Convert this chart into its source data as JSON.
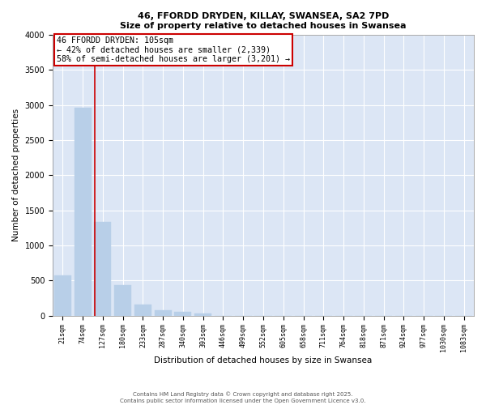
{
  "title_line1": "46, FFORDD DRYDEN, KILLAY, SWANSEA, SA2 7PD",
  "title_line2": "Size of property relative to detached houses in Swansea",
  "xlabel": "Distribution of detached houses by size in Swansea",
  "ylabel": "Number of detached properties",
  "bar_color": "#b8cfe8",
  "bar_edge_color": "#b8cfe8",
  "background_color": "#dce6f5",
  "grid_color": "#ffffff",
  "categories": [
    "21sqm",
    "74sqm",
    "127sqm",
    "180sqm",
    "233sqm",
    "287sqm",
    "340sqm",
    "393sqm",
    "446sqm",
    "499sqm",
    "552sqm",
    "605sqm",
    "658sqm",
    "711sqm",
    "764sqm",
    "818sqm",
    "871sqm",
    "924sqm",
    "977sqm",
    "1030sqm",
    "1083sqm"
  ],
  "values": [
    570,
    2960,
    1340,
    430,
    155,
    80,
    50,
    30,
    0,
    0,
    0,
    0,
    0,
    0,
    0,
    0,
    0,
    0,
    0,
    0,
    0
  ],
  "ylim": [
    0,
    4000
  ],
  "yticks": [
    0,
    500,
    1000,
    1500,
    2000,
    2500,
    3000,
    3500,
    4000
  ],
  "annotation_text": "46 FFORDD DRYDEN: 105sqm\n← 42% of detached houses are smaller (2,339)\n58% of semi-detached houses are larger (3,201) →",
  "annotation_box_color": "#ffffff",
  "annotation_box_edge_color": "#cc0000",
  "red_line_color": "#cc0000",
  "footer_line1": "Contains HM Land Registry data © Crown copyright and database right 2025.",
  "footer_line2": "Contains public sector information licensed under the Open Government Licence v3.0."
}
